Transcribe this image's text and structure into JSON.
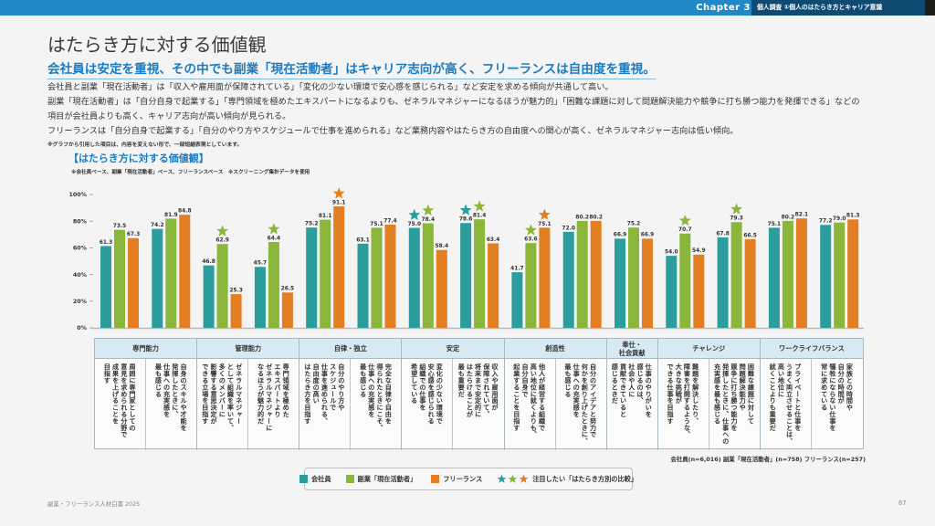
{
  "header": {
    "chapter": "Chapter 3",
    "section": "個人調査 ①個人のはたらき方とキャリア意識"
  },
  "page": {
    "title": "はたらき方に対する価値観",
    "subtitle": "会社員は安定を重視、その中でも副業「現在活動者」はキャリア志向が高く、フリーランスは自由度を重視。",
    "body": [
      "会社員と副業「現在活動者」は「収入や雇用面が保障されている」「変化の少ない環境で安心感を感じられる」など安定を求める傾向が共通して高い。",
      "副業「現在活動者」は「自分自身で起業する」「専門領域を極めたエキスパートになるよりも、ゼネラルマネジャーになるほうが魅力的」「困難な課題に対して問題解決能力や競争に打ち勝つ能力を発揮できる」などの",
      "項目が会社員よりも高く、キャリア志向が高い傾向が見られる。",
      "フリーランスは「自分自身で起業する」「自分のやり方やスケジュールで仕事を進められる」など業務内容やはたらき方の自由度への関心が高く、ゼネラルマネジャー志向は低い傾向。"
    ],
    "note": "※グラフから引用した項目は、内容を変えない形で、一部短縮表現としています。"
  },
  "chart_block": {
    "title": "【はたらき方に対する価値観】",
    "note": "※会社員ベース、副業「現在活動者」ベース、フリーランスベース　※スクリーニング集計データを使用"
  },
  "colors": {
    "company_employee": "#2a9d9c",
    "side_job": "#8ab63b",
    "freelance": "#e37f22",
    "accent": "#1b7cc2"
  },
  "chart_data": {
    "type": "bar",
    "title": "【はたらき方に対する価値観】",
    "xlabel": "",
    "ylabel": "",
    "ylim": [
      0,
      100
    ],
    "yticks": [
      0,
      20,
      40,
      60,
      80,
      100
    ],
    "yticklabels": [
      "0%",
      "20%",
      "40%",
      "60%",
      "80%",
      "100%"
    ],
    "grid": false,
    "legend_position": "bottom",
    "categories": [
      "周囲に専門家としての意見を求められる分野で成果を上げることを目指す",
      "自身のスキルや才能を発揮したときに、仕事への充実感を最も感じる",
      "ゼネラルマネジャーとして組織を率いて、多くのメンバーに影響する意思決定ができる立場を目指す",
      "専門領域を極めたエキスパートよりゼネラルマネジャーになるほうが魅力的だ",
      "自分のやり方やスケジュールで仕事を進められる、自由度の高いはたらき方を目指す",
      "完全な自律や自由を得られたときにこそ、仕事への充実感を最も感じる",
      "変化の少ない環境で安心感を感じられる組織での仕事を希望している",
      "収入や雇用面が保障されていて、将来まで安定的にはたらけることが最も重要だ",
      "他人が経営する組織で高い地位に就くよりも、自分自身で起業することを目指す",
      "自分のアイデアと努力で何かを創り上げたときに、仕事への充実感を最も感じる",
      "仕事のやりがいを感じるのは、社会や人に貢献できていると感じるときだ",
      "難題を解決したり、障害を打開するような、大きな挑戦ができる仕事を目指す",
      "困難な課題に対して問題解決能力や競争に打ち勝つ能力を発揮したときに、仕事への充実感を最も感じる",
      "プライベートと仕事をうまく両立させることは、高い地位に就くことよりも重要だ",
      "家族との時間や自分の時間が犠牲にならない仕事を常に求めている"
    ],
    "series": [
      {
        "name": "会社員",
        "color": "#2a9d9c",
        "values": [
          61.3,
          74.2,
          46.8,
          45.7,
          75.2,
          63.1,
          75.0,
          78.6,
          41.7,
          72.0,
          66.9,
          54.0,
          67.8,
          75.1,
          77.2
        ]
      },
      {
        "name": "副業「現在活動者」",
        "color": "#8ab63b",
        "values": [
          73.5,
          81.9,
          62.9,
          64.4,
          81.1,
          75.1,
          78.4,
          81.4,
          63.6,
          80.2,
          75.2,
          70.7,
          79.3,
          80.2,
          79.0
        ]
      },
      {
        "name": "フリーランス",
        "color": "#e37f22",
        "values": [
          67.3,
          84.8,
          25.3,
          26.5,
          91.1,
          77.4,
          58.4,
          63.4,
          75.1,
          80.2,
          66.9,
          54.9,
          66.5,
          82.1,
          81.3
        ]
      }
    ],
    "highlights": [
      {
        "category": 2,
        "series": 1
      },
      {
        "category": 3,
        "series": 1
      },
      {
        "category": 4,
        "series": 2
      },
      {
        "category": 6,
        "series": 0
      },
      {
        "category": 6,
        "series": 1
      },
      {
        "category": 7,
        "series": 0
      },
      {
        "category": 7,
        "series": 1
      },
      {
        "category": 8,
        "series": 1
      },
      {
        "category": 8,
        "series": 2
      },
      {
        "category": 11,
        "series": 1
      },
      {
        "category": 12,
        "series": 1
      }
    ],
    "highlight_label": "注目したい「はたらき方別の比較」"
  },
  "table": {
    "groups": [
      {
        "label": "専門能力",
        "span": 2
      },
      {
        "label": "管理能力",
        "span": 2
      },
      {
        "label": "自律・独立",
        "span": 2
      },
      {
        "label": "安定",
        "span": 2
      },
      {
        "label": "創造性",
        "span": 2
      },
      {
        "label": "奉仕・\n社会貢献",
        "span": 1
      },
      {
        "label": "チャレンジ",
        "span": 2
      },
      {
        "label": "ワークライフバランス",
        "span": 2
      }
    ],
    "items": [
      "周囲に専門家としての\n意見を求められる分野で\n成果を上げることを\n目指す",
      "自身のスキルや才能を\n発揮したときに、\n仕事への充実感を\n最も感じる",
      "ゼネラルマネジャー\nとして組織を率いて、\n多くのメンバーに\n影響する意思決定が\nできる立場を目指す",
      "専門領域を極めた\nエキスパートより\nゼネラルマネジャーに\nなるほうが魅力的だ",
      "自分のやり方や\nスケジュールで\n仕事を進められる、\n自由度の高い\nはたらき方を目指す",
      "完全な自律や自由を\n得られたときにこそ、\n仕事への充実感を\n最も感じる",
      "変化の少ない環境で\n安心感を感じられる\n組織での仕事を\n希望している",
      "収入や雇用面が\n保障されていて、\n将来まで安定的に\nはたらけることが\n最も重要だ",
      "他人が経営する組織で\n高い地位に就くよりも、\n自分自身で\n起業することを目指す",
      "自分のアイデアと努力で\n何かを創り上げたときに、\n仕事への充実感を\n最も感じる",
      "仕事のやりがいを\n感じるのは、\n社会や人に\n貢献できていると\n感じるときだ",
      "難題を解決したり、\n障害を打開するような、\n大きな挑戦が\nできる仕事を目指す",
      "困難な課題に対して\n問題解決能力や\n競争に打ち勝つ能力を\n発揮したときに、仕事への\n充実感を最も感じる",
      "プライベートと仕事を\nうまく両立させることは、\n高い地位に\n就くことよりも重要だ",
      "家族との時間や\n自分の時間が\n犠牲にならない仕事を\n常に求めている"
    ]
  },
  "sample_note": "会社員(n=6,016) 副業「現在活動者」(n=758) フリーランス(n=257)",
  "legend": {
    "items": [
      "会社員",
      "副業「現在活動者」",
      "フリーランス"
    ],
    "highlight_label": "注目したい「はたらき方別の比較」",
    "icons": [
      "teal-star-icon",
      "green-star-icon",
      "orange-star-icon"
    ]
  },
  "footer": {
    "publication": "副業・フリーランス人材白書 2025",
    "page_number": "67"
  }
}
